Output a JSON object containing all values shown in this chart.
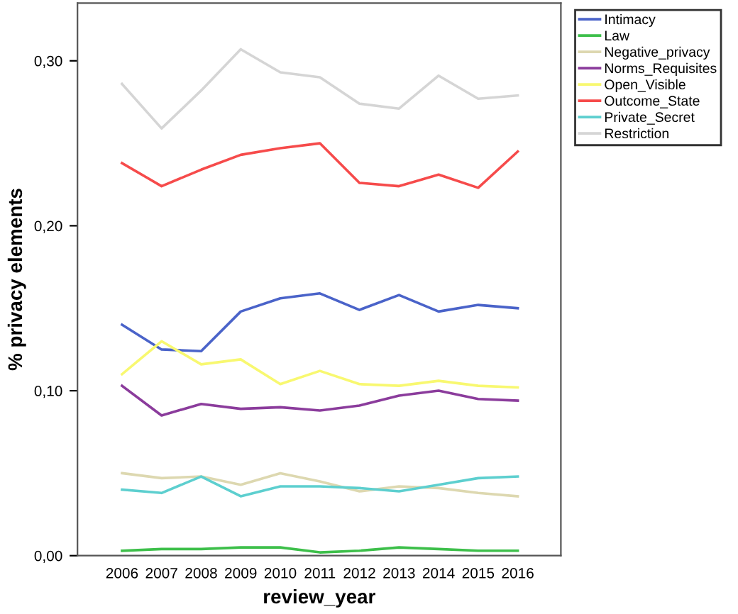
{
  "chart_data": {
    "type": "line",
    "xlabel": "review_year",
    "ylabel": "% privacy elements",
    "x": [
      2006,
      2007,
      2008,
      2009,
      2010,
      2011,
      2012,
      2013,
      2014,
      2015,
      2016
    ],
    "xlim": [
      2004.875,
      2017.09
    ],
    "xticks": [
      2006,
      2007,
      2008,
      2009,
      2010,
      2011,
      2012,
      2013,
      2014,
      2015,
      2016
    ],
    "ylim": [
      0,
      0.335
    ],
    "yticks": [
      {
        "value": 0,
        "label": "0,00"
      },
      {
        "value": 0.1,
        "label": "0,10"
      },
      {
        "value": 0.2,
        "label": "0,20"
      },
      {
        "value": 0.3,
        "label": "0,30"
      }
    ],
    "grid": false,
    "legend": "top right",
    "marker": "none",
    "line_style": "solid",
    "series": [
      {
        "name": "Intimacy",
        "color": "#4a63c9",
        "values": [
          0.14,
          0.125,
          0.124,
          0.148,
          0.156,
          0.159,
          0.149,
          0.158,
          0.148,
          0.152,
          0.15
        ]
      },
      {
        "name": "Law",
        "color": "#3dbf4a",
        "values": [
          0.003,
          0.004,
          0.004,
          0.005,
          0.005,
          0.002,
          0.003,
          0.005,
          0.004,
          0.003,
          0.003
        ]
      },
      {
        "name": "Negative_privacy",
        "color": "#ddd8b0",
        "values": [
          0.05,
          0.047,
          0.048,
          0.043,
          0.05,
          0.045,
          0.039,
          0.042,
          0.041,
          0.038,
          0.036
        ]
      },
      {
        "name": "Norms_Requisites",
        "color": "#8b3c9c",
        "values": [
          0.103,
          0.085,
          0.092,
          0.089,
          0.09,
          0.088,
          0.091,
          0.097,
          0.1,
          0.095,
          0.094
        ]
      },
      {
        "name": "Open_Visible",
        "color": "#f8f870",
        "values": [
          0.11,
          0.13,
          0.116,
          0.119,
          0.104,
          0.112,
          0.104,
          0.103,
          0.106,
          0.103,
          0.102
        ]
      },
      {
        "name": "Outcome_State",
        "color": "#f64b4b",
        "values": [
          0.238,
          0.224,
          0.234,
          0.243,
          0.247,
          0.25,
          0.226,
          0.224,
          0.231,
          0.223,
          0.245
        ]
      },
      {
        "name": "Private_Secret",
        "color": "#5dcfcf",
        "values": [
          0.04,
          0.038,
          0.048,
          0.036,
          0.042,
          0.042,
          0.041,
          0.039,
          0.043,
          0.047,
          0.048
        ]
      },
      {
        "name": "Restriction",
        "color": "#d5d5d5",
        "values": [
          0.286,
          0.259,
          0.282,
          0.307,
          0.293,
          0.29,
          0.274,
          0.271,
          0.291,
          0.277,
          0.279
        ]
      }
    ]
  }
}
